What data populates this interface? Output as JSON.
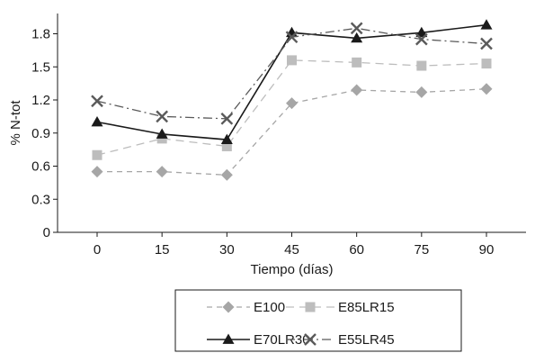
{
  "chart_data": {
    "type": "line",
    "xlabel": "Tiempo (días)",
    "ylabel": "% N-tot",
    "x": [
      0,
      15,
      30,
      45,
      60,
      75,
      90
    ],
    "xlim": [
      0,
      90
    ],
    "ylim": [
      0,
      2.0
    ],
    "yticks": [
      "0",
      "0.3",
      "0.6",
      "0.9",
      "1.2",
      "1.5",
      "1.8"
    ],
    "xticks": [
      "0",
      "15",
      "30",
      "45",
      "60",
      "75",
      "90"
    ],
    "grid": false,
    "legend_position": "bottom-center",
    "series": [
      {
        "name": "E100",
        "values": [
          0.55,
          0.55,
          0.52,
          1.17,
          1.29,
          1.27,
          1.3
        ],
        "color": "#a6a6a6",
        "marker": "diamond",
        "dash": "6,5"
      },
      {
        "name": "E85LR15",
        "values": [
          0.7,
          0.85,
          0.78,
          1.56,
          1.54,
          1.51,
          1.53
        ],
        "color": "#bdbdbd",
        "marker": "square",
        "dash": "9,6"
      },
      {
        "name": "E70LR30",
        "values": [
          1.0,
          0.89,
          0.84,
          1.81,
          1.76,
          1.81,
          1.88
        ],
        "color": "#1a1a1a",
        "marker": "triangle",
        "dash": ""
      },
      {
        "name": "E55LR45",
        "values": [
          1.19,
          1.05,
          1.03,
          1.77,
          1.85,
          1.75,
          1.71
        ],
        "color": "#5a5a5a",
        "marker": "x",
        "dash": "10,4,2,4"
      }
    ]
  }
}
